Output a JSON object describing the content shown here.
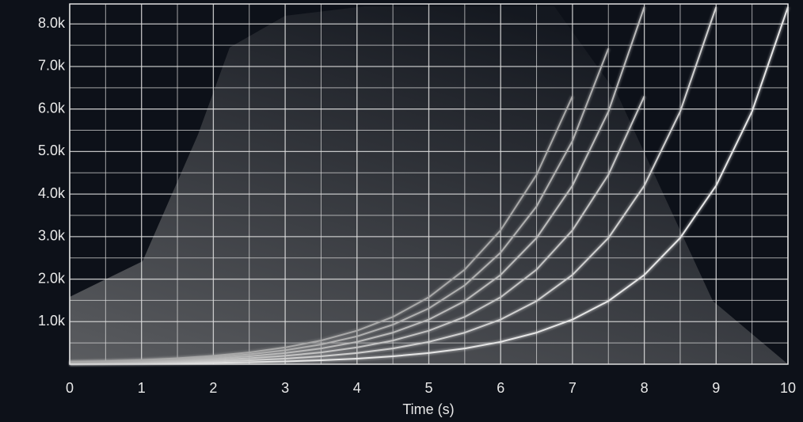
{
  "chart_data": {
    "type": "line",
    "x_label": "Time (s)",
    "x": [
      0,
      0.5,
      1,
      1.5,
      2,
      2.5,
      3,
      3.5,
      4,
      4.5,
      5,
      5.5,
      6,
      6.5,
      7,
      7.5,
      8,
      8.5,
      9,
      9.5,
      10
    ],
    "series": [
      {
        "color": "#e6e6e6",
        "values": [
          8,
          12,
          16,
          23,
          33,
          46,
          66,
          93,
          131,
          186,
          263,
          371,
          525,
          742,
          1050,
          1485,
          2100,
          2970,
          4200,
          5940,
          8400
        ]
      },
      {
        "color": "#d0d0d0",
        "values": [
          16,
          23,
          33,
          46,
          66,
          93,
          131,
          186,
          263,
          371,
          525,
          742,
          1050,
          1485,
          2100,
          2970,
          4200,
          5940,
          8400,
          null,
          null
        ]
      },
      {
        "color": "#c4c4c4",
        "values": [
          25,
          35,
          49,
          70,
          98,
          139,
          197,
          278,
          394,
          557,
          788,
          1113,
          1575,
          2227,
          3150,
          4455,
          6300,
          null,
          null,
          null,
          null
        ]
      },
      {
        "color": "#bbbbbb",
        "values": [
          33,
          46,
          66,
          93,
          131,
          186,
          263,
          371,
          525,
          742,
          1050,
          1485,
          2100,
          2970,
          4200,
          5940,
          8400,
          null,
          null,
          null,
          null
        ]
      },
      {
        "color": "#b0b0b0",
        "values": [
          41,
          58,
          82,
          116,
          164,
          232,
          328,
          464,
          656,
          928,
          1313,
          1856,
          2625,
          3712,
          5250,
          7425,
          null,
          null,
          null,
          null,
          null
        ]
      },
      {
        "color": "#a8a8a8",
        "values": [
          49,
          70,
          98,
          139,
          197,
          278,
          394,
          557,
          788,
          1113,
          1575,
          2227,
          3150,
          4455,
          6300,
          null,
          null,
          null,
          null,
          null,
          null
        ]
      }
    ],
    "xlim": [
      0,
      10
    ],
    "xticks": [
      0,
      1,
      2,
      3,
      4,
      5,
      6,
      7,
      8,
      9,
      10
    ],
    "ylim": [
      0,
      8470
    ],
    "yticks": [
      {
        "value": 1000,
        "label": "1.0k"
      },
      {
        "value": 2000,
        "label": "2.0k"
      },
      {
        "value": 3000,
        "label": "3.0k"
      },
      {
        "value": 4000,
        "label": "4.0k"
      },
      {
        "value": 5000,
        "label": "5.0k"
      },
      {
        "value": 6000,
        "label": "6.0k"
      },
      {
        "value": 7000,
        "label": "7.0k"
      },
      {
        "value": 8000,
        "label": "8.0k"
      }
    ],
    "grid": true
  }
}
